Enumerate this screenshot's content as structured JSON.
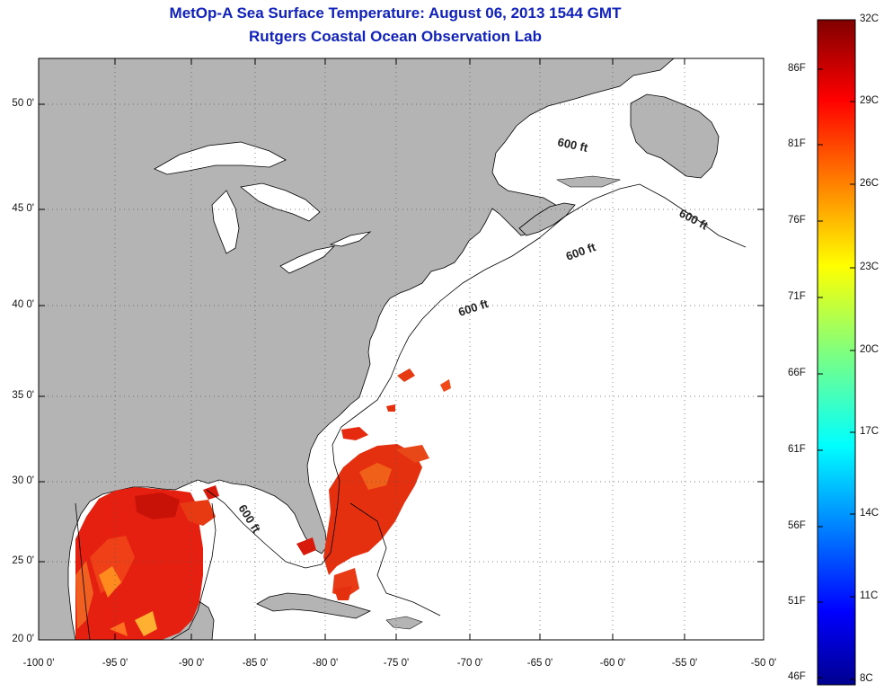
{
  "header": {
    "title": "MetOp-A Sea Surface Temperature:  August 06, 2013 1544 GMT",
    "subtitle": "Rutgers Coastal Ocean Observation Lab"
  },
  "map": {
    "lat_ticks": [
      "50 0'",
      "45 0'",
      "40 0'",
      "35 0'",
      "30 0'",
      "25 0'",
      "20 0'"
    ],
    "lon_ticks": [
      "-100 0'",
      "-95 0'",
      "-90 0'",
      "-85 0'",
      "-80 0'",
      "-75 0'",
      "-70 0'",
      "-65 0'",
      "-60 0'",
      "-55 0'",
      "-50 0'"
    ],
    "contour_label": "600 ft",
    "land_color": "#b4b4b4",
    "water_color": "#ffffff"
  },
  "colorbar": {
    "fahrenheit": [
      "86F",
      "81F",
      "76F",
      "71F",
      "66F",
      "61F",
      "56F",
      "51F",
      "46F"
    ],
    "celsius": [
      "32C",
      "29C",
      "26C",
      "23C",
      "20C",
      "17C",
      "14C",
      "11C",
      "8C"
    ]
  }
}
